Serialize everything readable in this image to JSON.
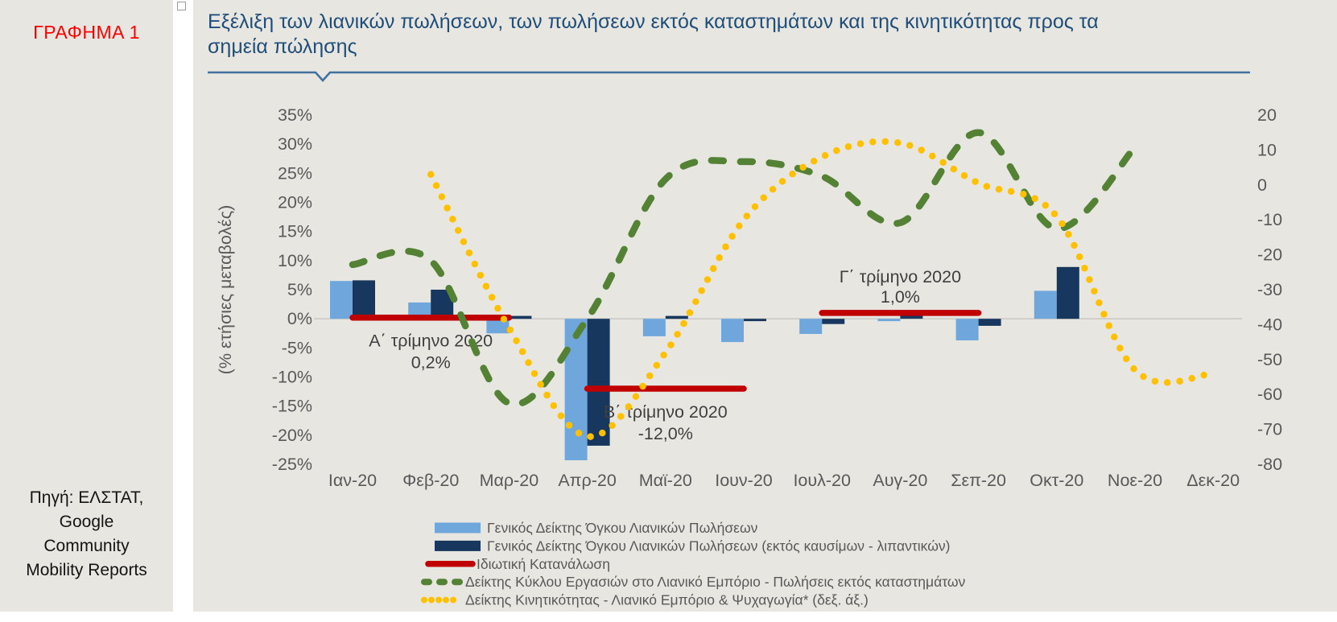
{
  "sidebar": {
    "tag": "ΓΡΑΦΗΜΑ 1",
    "source": "Πηγή: ΕΛΣΤΑΤ,\nGoogle\nCommunity\nMobility Reports"
  },
  "header": {
    "title": "Εξέλιξη των λιανικών πωλήσεων, των πωλήσεων εκτός καταστημάτων και της κινητικότητας προς τα\nσημεία πώλησης"
  },
  "colors": {
    "background": "#E8E6E1",
    "tag_red": "#FF0000",
    "title_blue": "#1F4E79",
    "divider_blue": "#41719C",
    "axis_text": "#595959",
    "annotation_text": "#3F3F3F",
    "zero_line": "#CBCAC5"
  },
  "chart_data": {
    "type": "bar",
    "subtype": "combo-bar-lines-dual-axis",
    "categories": [
      "Ιαν-20",
      "Φεβ-20",
      "Μαρ-20",
      "Απρ-20",
      "Μαϊ-20",
      "Ιουν-20",
      "Ιουλ-20",
      "Αυγ-20",
      "Σεπ-20",
      "Οκτ-20",
      "Νοε-20",
      "Δεκ-20"
    ],
    "left_axis": {
      "label": "(% ετήσιες μεταβολές)",
      "min": -25,
      "max": 35,
      "ticks": [
        "35%",
        "30%",
        "25%",
        "20%",
        "15%",
        "10%",
        "5%",
        "0%",
        "-5%",
        "-10%",
        "-15%",
        "-20%",
        "-25%"
      ],
      "grid": "zero-line-only"
    },
    "right_axis": {
      "min": -80,
      "max": 20,
      "ticks": [
        "20",
        "10",
        "0",
        "-10",
        "-20",
        "-30",
        "-40",
        "-50",
        "-60",
        "-70",
        "-80"
      ]
    },
    "legend_position": "bottom",
    "series": [
      {
        "name": "Γενικός Δείκτης Όγκου Λιανικών Πωλήσεων",
        "type": "bar",
        "axis": "left",
        "color": "#6FA7DC",
        "values": [
          6.5,
          2.8,
          -2.5,
          -24.3,
          -3.0,
          -4.0,
          -2.6,
          -0.4,
          -3.7,
          4.8,
          null,
          null
        ]
      },
      {
        "name": "Γενικός Δείκτης Όγκου Λιανικών Πωλήσεων (εκτός καυσίμων - λιπαντικών)",
        "type": "bar",
        "axis": "left",
        "color": "#17375E",
        "values": [
          6.6,
          5.0,
          0.5,
          -21.8,
          0.5,
          -0.4,
          -0.9,
          0.6,
          -1.2,
          8.9,
          null,
          null
        ]
      },
      {
        "name": "Ιδιωτική Κατανάλωση",
        "type": "segments",
        "axis": "left",
        "color": "#C00000",
        "segments": [
          {
            "label": "Α΄ τρίμηνο 2020",
            "value_label": "0,2%",
            "value": 0.2,
            "from": 0,
            "to": 2,
            "label_pos": "below"
          },
          {
            "label": "Β΄ τρίμηνο 2020",
            "value_label": "-12,0%",
            "value": -12.0,
            "from": 3,
            "to": 5,
            "label_pos": "below"
          },
          {
            "label": "Γ΄ τρίμηνο 2020",
            "value_label": "1,0%",
            "value": 1.0,
            "from": 6,
            "to": 8,
            "label_pos": "above"
          }
        ]
      },
      {
        "name": "Δείκτης Κύκλου Εργασιών στο Λιανικό Εμπόριο - Πωλήσεις εκτός καταστημάτων",
        "type": "line-dashed",
        "axis": "left",
        "color": "#548235",
        "values": [
          9.3,
          10.0,
          -14.5,
          0.0,
          24.0,
          27.0,
          24.5,
          16.5,
          32.0,
          15.5,
          29.5,
          null
        ]
      },
      {
        "name": "Δείκτης Κινητικότητας -  Λιανικό Εμπόριο & Ψυχαγωγία* (δεξ. άξ.)",
        "type": "line-dotted",
        "axis": "right",
        "color": "#FFC000",
        "values": [
          null,
          3,
          -41,
          -72,
          -48,
          -10,
          8,
          12,
          0.5,
          -9,
          -53,
          -54
        ]
      }
    ]
  }
}
